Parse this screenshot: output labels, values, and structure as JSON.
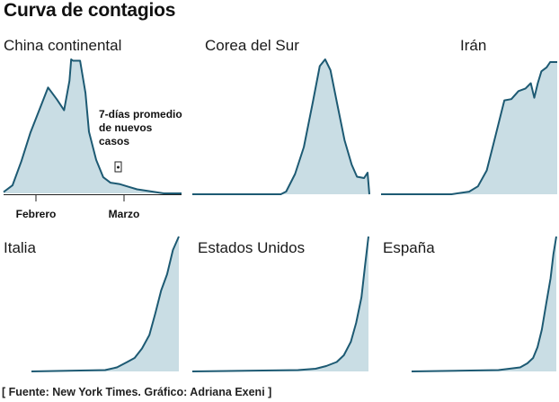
{
  "title": "Curva de contagios",
  "source": "[ Fuente: New York Times. Gráfico: Adriana Exeni ]",
  "colors": {
    "line": "#1d5a73",
    "fill": "#c9dde4",
    "axis": "#222222"
  },
  "chart_data": [
    {
      "type": "area",
      "title": "China continental",
      "x_ticks": [
        "Febrero",
        "Marzo"
      ],
      "annotation": "7-días promedio de nuevos casos",
      "x": [
        0,
        0.05,
        0.1,
        0.15,
        0.2,
        0.25,
        0.3,
        0.34,
        0.37,
        0.38,
        0.39,
        0.43,
        0.46,
        0.48,
        0.52,
        0.56,
        0.6,
        0.65,
        0.7,
        0.75,
        0.8,
        0.85,
        0.9,
        1.0
      ],
      "values": [
        0.01,
        0.06,
        0.24,
        0.45,
        0.62,
        0.79,
        0.7,
        0.62,
        0.84,
        1.0,
        0.99,
        0.99,
        0.75,
        0.46,
        0.25,
        0.12,
        0.08,
        0.07,
        0.05,
        0.03,
        0.02,
        0.01,
        0.0,
        0.0
      ]
    },
    {
      "type": "area",
      "title": "Corea del Sur",
      "x": [
        0,
        0.3,
        0.5,
        0.53,
        0.58,
        0.63,
        0.68,
        0.72,
        0.75,
        0.78,
        0.82,
        0.86,
        0.9,
        0.93,
        0.97,
        0.99,
        1.0
      ],
      "values": [
        0.0,
        0.0,
        0.0,
        0.02,
        0.15,
        0.35,
        0.68,
        0.95,
        1.0,
        0.92,
        0.66,
        0.4,
        0.22,
        0.13,
        0.12,
        0.16,
        0.0
      ]
    },
    {
      "type": "area",
      "title": "Irán",
      "x": [
        0,
        0.4,
        0.5,
        0.55,
        0.6,
        0.64,
        0.67,
        0.7,
        0.74,
        0.78,
        0.82,
        0.85,
        0.87,
        0.89,
        0.91,
        0.94,
        0.96,
        1.0
      ],
      "values": [
        0.0,
        0.0,
        0.02,
        0.06,
        0.18,
        0.39,
        0.55,
        0.71,
        0.72,
        0.78,
        0.8,
        0.84,
        0.73,
        0.84,
        0.93,
        0.96,
        1.0,
        1.0
      ]
    },
    {
      "type": "area",
      "title": "Italia",
      "x": [
        0,
        0.5,
        0.58,
        0.65,
        0.7,
        0.75,
        0.8,
        0.84,
        0.88,
        0.92,
        0.96,
        1.0
      ],
      "values": [
        0.0,
        0.01,
        0.03,
        0.07,
        0.1,
        0.17,
        0.27,
        0.43,
        0.6,
        0.72,
        0.9,
        1.0
      ]
    },
    {
      "type": "area",
      "title": "Estados Unidos",
      "x": [
        0,
        0.6,
        0.7,
        0.76,
        0.82,
        0.86,
        0.9,
        0.93,
        0.96,
        0.98,
        1.0
      ],
      "values": [
        0.0,
        0.01,
        0.02,
        0.04,
        0.07,
        0.12,
        0.22,
        0.36,
        0.55,
        0.78,
        1.0
      ]
    },
    {
      "type": "area",
      "title": "España",
      "x": [
        0,
        0.6,
        0.75,
        0.8,
        0.84,
        0.87,
        0.9,
        0.93,
        0.96,
        0.98,
        1.0
      ],
      "values": [
        0.0,
        0.01,
        0.03,
        0.06,
        0.1,
        0.18,
        0.31,
        0.5,
        0.69,
        0.87,
        1.0
      ]
    }
  ]
}
